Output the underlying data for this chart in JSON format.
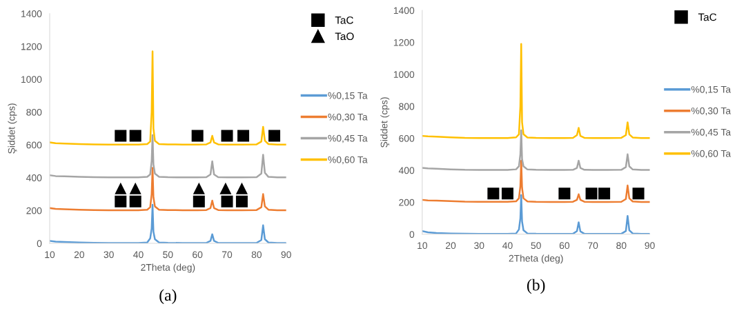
{
  "chart_data": [
    {
      "type": "line",
      "xlabel": "2Theta (deg)",
      "ylabel": "Şiddet (cps)",
      "annotations": [
        "(a)"
      ],
      "xlim": [
        10,
        90
      ],
      "ylim": [
        0,
        1400
      ],
      "xticks": [
        10,
        20,
        30,
        40,
        50,
        60,
        70,
        80,
        90
      ],
      "yticks": [
        0,
        200,
        400,
        600,
        800,
        1000,
        1200,
        1400
      ],
      "grid": false,
      "legend": "right",
      "x": [
        10,
        12,
        15,
        20,
        25,
        30,
        35,
        40,
        43,
        44,
        44.5,
        44.8,
        45.1,
        45.6,
        47,
        50,
        55,
        60,
        63,
        64.4,
        65,
        65.6,
        67,
        70,
        75,
        80,
        81.6,
        82.2,
        82.8,
        84,
        87,
        90
      ],
      "series": [
        {
          "name": "%0,15 Ta",
          "color": "#5b9bd5",
          "values": [
            15,
            10,
            8,
            5,
            3,
            2,
            2,
            2,
            5,
            30,
            90,
            235,
            70,
            25,
            5,
            3,
            2,
            2,
            3,
            15,
            55,
            15,
            3,
            2,
            2,
            3,
            20,
            110,
            25,
            5,
            2,
            2
          ]
        },
        {
          "name": "%0,30 Ta",
          "color": "#ed7d31",
          "values": [
            215,
            210,
            208,
            205,
            203,
            202,
            202,
            202,
            205,
            220,
            300,
            460,
            280,
            225,
            205,
            203,
            202,
            202,
            203,
            215,
            260,
            215,
            203,
            202,
            202,
            203,
            220,
            300,
            225,
            205,
            202,
            202
          ]
        },
        {
          "name": "%0,45 Ta",
          "color": "#a5a5a5",
          "values": [
            415,
            410,
            408,
            405,
            403,
            402,
            402,
            402,
            405,
            420,
            500,
            660,
            480,
            425,
            405,
            403,
            402,
            402,
            403,
            420,
            500,
            420,
            403,
            402,
            402,
            403,
            425,
            540,
            430,
            405,
            402,
            402
          ]
        },
        {
          "name": "%0,60 Ta",
          "color": "#ffc000",
          "values": [
            615,
            610,
            608,
            605,
            603,
            602,
            602,
            602,
            605,
            620,
            800,
            1170,
            700,
            625,
            605,
            603,
            602,
            602,
            603,
            615,
            655,
            615,
            603,
            602,
            602,
            603,
            620,
            710,
            625,
            605,
            602,
            602
          ]
        },
        {
          "name": "TaC",
          "type": "scatter",
          "marker": "square",
          "color": "#000000",
          "x": [
            34,
            39,
            60,
            70,
            75.5,
            86,
            34,
            39,
            60.5,
            70,
            75
          ],
          "values": [
            655,
            655,
            655,
            655,
            655,
            655,
            255,
            255,
            255,
            255,
            255
          ]
        },
        {
          "name": "TaO",
          "type": "scatter",
          "marker": "triangle",
          "color": "#000000",
          "x": [
            34,
            39,
            60.5,
            69.5,
            75
          ],
          "values": [
            335,
            335,
            335,
            335,
            335
          ]
        }
      ]
    },
    {
      "type": "line",
      "xlabel": "2Theta (deg)",
      "ylabel": "Şiddet (cps)",
      "annotations": [
        "(b)"
      ],
      "xlim": [
        10,
        90
      ],
      "ylim": [
        0,
        1400
      ],
      "xticks": [
        10,
        20,
        30,
        40,
        50,
        60,
        70,
        80,
        90
      ],
      "yticks": [
        0,
        200,
        400,
        600,
        800,
        1000,
        1200,
        1400
      ],
      "grid": false,
      "legend": "right",
      "x": [
        10,
        12,
        15,
        20,
        25,
        30,
        35,
        40,
        43,
        44,
        44.5,
        44.8,
        45.1,
        45.6,
        47,
        50,
        55,
        60,
        63,
        64.4,
        65,
        65.6,
        67,
        70,
        75,
        80,
        81.6,
        82.2,
        82.8,
        84,
        87,
        90
      ],
      "series": [
        {
          "name": "%0,15 Ta",
          "color": "#5b9bd5",
          "values": [
            20,
            12,
            8,
            5,
            3,
            2,
            2,
            2,
            5,
            30,
            100,
            245,
            80,
            25,
            5,
            3,
            2,
            2,
            3,
            20,
            75,
            18,
            3,
            2,
            2,
            3,
            20,
            115,
            25,
            5,
            2,
            2
          ]
        },
        {
          "name": "%0,30 Ta",
          "color": "#ed7d31",
          "values": [
            215,
            212,
            210,
            207,
            204,
            203,
            203,
            203,
            206,
            225,
            300,
            460,
            290,
            225,
            205,
            203,
            202,
            202,
            203,
            215,
            250,
            215,
            203,
            202,
            202,
            203,
            220,
            305,
            225,
            205,
            202,
            202
          ]
        },
        {
          "name": "%0,45 Ta",
          "color": "#a5a5a5",
          "values": [
            415,
            412,
            410,
            406,
            403,
            402,
            402,
            402,
            406,
            425,
            500,
            650,
            470,
            425,
            405,
            403,
            402,
            402,
            403,
            415,
            460,
            415,
            403,
            402,
            402,
            403,
            420,
            500,
            425,
            405,
            402,
            402
          ]
        },
        {
          "name": "%0,60 Ta",
          "color": "#ffc000",
          "values": [
            615,
            612,
            610,
            606,
            603,
            602,
            602,
            602,
            606,
            625,
            800,
            1190,
            700,
            625,
            605,
            603,
            602,
            602,
            603,
            620,
            665,
            615,
            603,
            602,
            602,
            603,
            620,
            700,
            625,
            605,
            602,
            602
          ]
        },
        {
          "name": "TaC",
          "type": "scatter",
          "marker": "square",
          "color": "#000000",
          "x": [
            35,
            40,
            60,
            69.5,
            74,
            86
          ],
          "values": [
            255,
            255,
            255,
            255,
            255,
            255
          ]
        }
      ]
    }
  ]
}
